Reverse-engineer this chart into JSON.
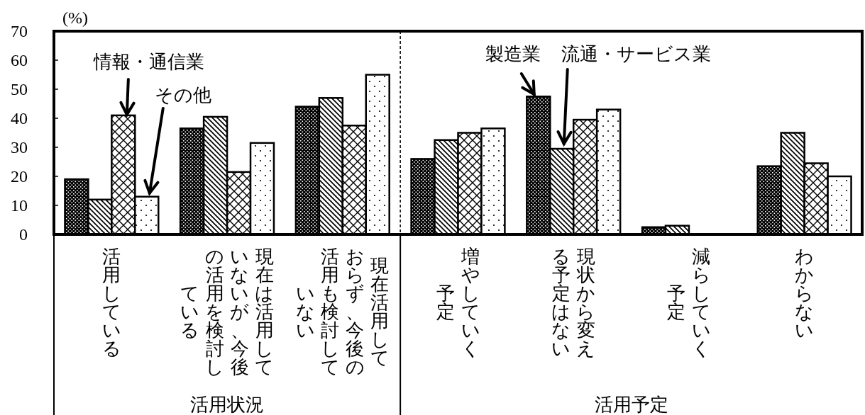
{
  "chart_data": {
    "type": "bar",
    "ylabel": "(%)",
    "categories": [
      "活用している",
      "現在は活用していないが、今後の活用を検討している",
      "現在活用しておらず、今後の活用も検討していない",
      "増やしていく予定",
      "現状から変える予定はない",
      "減らしていく予定",
      "わからない"
    ],
    "series": [
      {
        "name": "製造業",
        "color": "#000000",
        "values": [
          19,
          36.5,
          44,
          26,
          47.5,
          2.5,
          23.5
        ]
      },
      {
        "name": "流通・サービス業",
        "color": "#000000",
        "values": [
          12,
          40.5,
          47,
          32.5,
          29.5,
          3,
          35
        ]
      },
      {
        "name": "情報・通信業",
        "color": "#000000",
        "values": [
          41,
          21.5,
          37.5,
          35,
          39.5,
          0,
          24.5
        ]
      },
      {
        "name": "その他",
        "color": "#000000",
        "values": [
          13,
          31.5,
          55,
          36.5,
          43,
          0,
          20
        ]
      }
    ],
    "ylim": [
      0,
      70
    ],
    "yticks": [
      0,
      10,
      20,
      30,
      40,
      50,
      60,
      70
    ],
    "annotations": [
      "活用状況",
      "活用予定"
    ]
  }
}
